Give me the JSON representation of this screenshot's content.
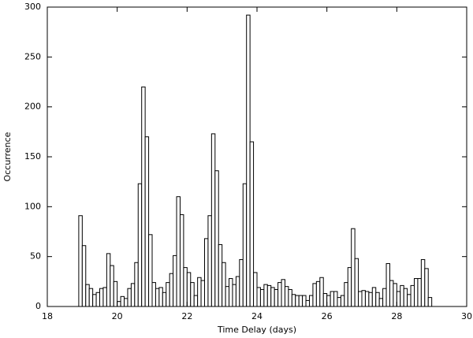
{
  "chart_data": {
    "type": "histogram",
    "x_label": "Time Delay (days)",
    "y_label": "Occurrence",
    "bins": [
      18.9,
      19,
      19.1,
      19.2,
      19.3,
      19.4,
      19.5,
      19.6,
      19.7,
      19.8,
      19.9,
      20,
      20.1,
      20.2,
      20.3,
      20.4,
      20.5,
      20.6,
      20.7,
      20.8,
      20.9,
      21,
      21.1,
      21.2,
      21.3,
      21.4,
      21.5,
      21.6,
      21.7,
      21.8,
      21.9,
      22,
      22.1,
      22.2,
      22.3,
      22.4,
      22.5,
      22.6,
      22.7,
      22.8,
      22.9,
      23,
      23.1,
      23.2,
      23.3,
      23.4,
      23.5,
      23.6,
      23.7,
      23.8,
      23.9,
      24,
      24.1,
      24.2,
      24.3,
      24.4,
      24.5,
      24.6,
      24.7,
      24.8,
      24.9,
      25,
      25.1,
      25.2,
      25.3,
      25.4,
      25.5,
      25.6,
      25.7,
      25.8,
      25.9,
      26,
      26.1,
      26.2,
      26.3,
      26.4,
      26.5,
      26.6,
      26.7,
      26.8,
      26.9,
      27,
      27.1,
      27.2,
      27.3,
      27.4,
      27.5,
      27.6,
      27.7,
      27.8,
      27.9,
      28,
      28.1,
      28.2,
      28.3,
      28.4,
      28.5,
      28.6,
      28.7,
      28.8,
      28.9,
      29
    ],
    "counts": [
      91,
      61,
      22,
      18,
      12,
      14,
      18,
      19,
      53,
      41,
      25,
      5,
      10,
      8,
      18,
      23,
      44,
      123,
      220,
      170,
      72,
      24,
      18,
      19,
      14,
      24,
      33,
      51,
      110,
      92,
      39,
      34,
      24,
      11,
      29,
      26,
      68,
      91,
      173,
      136,
      62,
      44,
      20,
      28,
      22,
      30,
      47,
      123,
      292,
      165,
      34,
      19,
      17,
      22,
      21,
      19,
      17,
      24,
      27,
      20,
      17,
      12,
      11,
      11,
      11,
      6,
      11,
      23,
      25,
      29,
      13,
      11,
      15,
      15,
      9,
      11,
      24,
      39,
      78,
      48,
      15,
      16,
      15,
      14,
      19,
      14,
      8,
      18,
      43,
      26,
      23,
      15,
      21,
      18,
      12,
      21,
      28,
      28,
      47,
      38,
      9
    ],
    "color": "#ffffff",
    "edge_color": "#000000",
    "xlim": [
      18,
      30
    ],
    "xticks": [
      18,
      20,
      22,
      24,
      26,
      28,
      30
    ],
    "ylim": [
      0,
      300
    ],
    "yticks": [
      0,
      50,
      100,
      150,
      200,
      250,
      300
    ]
  }
}
